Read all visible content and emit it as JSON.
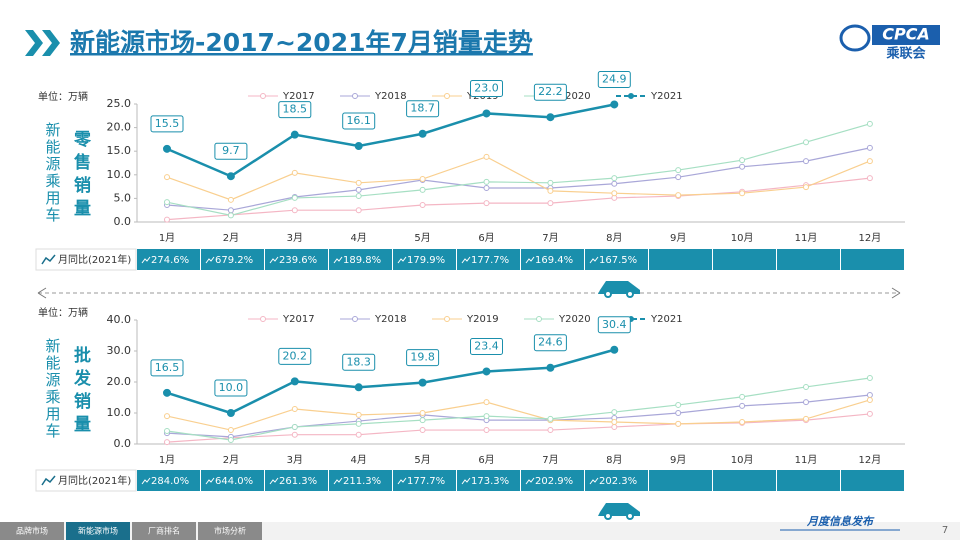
{
  "header": {
    "title": "新能源市场-2017~2021年7月销量走势",
    "logo": "CPCA",
    "logo_sub": "乘联会"
  },
  "chart_data": [
    {
      "type": "line",
      "title": "零售销量",
      "side_label": "新能源乘用车",
      "unit": "单位：万辆",
      "categories": [
        "1月",
        "2月",
        "3月",
        "4月",
        "5月",
        "6月",
        "7月",
        "8月",
        "9月",
        "10月",
        "11月",
        "12月"
      ],
      "ylim": [
        0,
        25
      ],
      "yticks": [
        {
          "value": 0,
          "label": "0.0"
        },
        {
          "value": 5,
          "label": "5.0"
        },
        {
          "value": 10,
          "label": "10.0"
        },
        {
          "value": 15,
          "label": "15.0"
        },
        {
          "value": 20,
          "label": "20.0"
        },
        {
          "value": 25,
          "label": "25.0"
        }
      ],
      "series": [
        {
          "name": "Y2017",
          "color": "#f4b6c4",
          "values": [
            0.5,
            1.5,
            2.5,
            2.5,
            3.6,
            4.0,
            4.0,
            5.1,
            5.5,
            6.4,
            7.8,
            9.3
          ]
        },
        {
          "name": "Y2018",
          "color": "#a9a7d8",
          "values": [
            3.6,
            2.5,
            5.3,
            6.8,
            8.9,
            7.2,
            7.2,
            8.1,
            9.5,
            11.7,
            12.9,
            15.7
          ]
        },
        {
          "name": "Y2019",
          "color": "#f9cf8f",
          "values": [
            9.5,
            4.7,
            10.4,
            8.3,
            9.1,
            13.8,
            6.6,
            6.1,
            5.7,
            6.1,
            7.4,
            12.9
          ]
        },
        {
          "name": "Y2020",
          "color": "#a6dfc3",
          "values": [
            4.2,
            1.4,
            5.1,
            5.5,
            6.8,
            8.5,
            8.3,
            9.3,
            11.0,
            13.1,
            16.9,
            20.8
          ]
        },
        {
          "name": "Y2021",
          "color": "#1a8fac",
          "values": [
            15.5,
            9.7,
            18.5,
            16.1,
            18.7,
            23,
            22.2,
            24.9,
            null,
            null,
            null,
            null
          ],
          "value_labels": [
            "15.5",
            "9.7",
            "18.5",
            "16.1",
            "18.7",
            "23.0",
            "22.2",
            "24.9",
            null,
            null,
            null,
            null
          ]
        }
      ],
      "yoy": {
        "label": "月同比(2021年)",
        "values": [
          274.6,
          679.2,
          239.6,
          189.8,
          179.9,
          177.7,
          169.4,
          167.5,
          null,
          null,
          null,
          null
        ],
        "value_labels": [
          "274.6%",
          "679.2%",
          "239.6%",
          "189.8%",
          "179.9%",
          "177.7%",
          "169.4%",
          "167.5%",
          null,
          null,
          null,
          null
        ]
      }
    },
    {
      "type": "line",
      "title": "批发销量",
      "side_label": "新能源乘用车",
      "unit": "单位：万辆",
      "categories": [
        "1月",
        "2月",
        "3月",
        "4月",
        "5月",
        "6月",
        "7月",
        "8月",
        "9月",
        "10月",
        "11月",
        "12月"
      ],
      "ylim": [
        0,
        40
      ],
      "yticks": [
        {
          "value": 0,
          "label": "0.0"
        },
        {
          "value": 10,
          "label": "10.0"
        },
        {
          "value": 20,
          "label": "20.0"
        },
        {
          "value": 30,
          "label": "30.0"
        },
        {
          "value": 40,
          "label": "40.0"
        }
      ],
      "series": [
        {
          "name": "Y2017",
          "color": "#f4b6c4",
          "values": [
            0.6,
            2.0,
            3.0,
            3.0,
            4.5,
            4.5,
            4.5,
            5.5,
            6.5,
            6.8,
            7.7,
            9.7
          ]
        },
        {
          "name": "Y2018",
          "color": "#a9a7d8",
          "values": [
            3.5,
            2.3,
            5.5,
            7.4,
            9.4,
            7.7,
            7.7,
            8.4,
            10.0,
            12.3,
            13.5,
            15.8
          ]
        },
        {
          "name": "Y2019",
          "color": "#f9cf8f",
          "values": [
            9.0,
            4.5,
            11.3,
            9.4,
            10.0,
            13.5,
            7.7,
            7.1,
            6.5,
            7.1,
            8.1,
            14.2
          ]
        },
        {
          "name": "Y2020",
          "color": "#a6dfc3",
          "values": [
            4.2,
            1.3,
            5.5,
            6.5,
            7.7,
            9.0,
            8.1,
            10.3,
            12.6,
            15.2,
            18.4,
            21.3
          ]
        },
        {
          "name": "Y2021",
          "color": "#1a8fac",
          "values": [
            16.5,
            10,
            20.2,
            18.3,
            19.8,
            23.4,
            24.6,
            30.4,
            null,
            null,
            null,
            null
          ],
          "value_labels": [
            "16.5",
            "10.0",
            "20.2",
            "18.3",
            "19.8",
            "23.4",
            "24.6",
            "30.4",
            null,
            null,
            null,
            null
          ]
        }
      ],
      "yoy": {
        "label": "月同比(2021年)",
        "values": [
          284.0,
          644.0,
          261.3,
          211.3,
          177.7,
          173.3,
          202.9,
          202.3,
          null,
          null,
          null,
          null
        ],
        "value_labels": [
          "284.0%",
          "644.0%",
          "261.3%",
          "211.3%",
          "177.7%",
          "173.3%",
          "202.9%",
          "202.3%",
          null,
          null,
          null,
          null
        ]
      }
    }
  ],
  "footer": {
    "tabs": [
      "品牌市场",
      "新能源市场",
      "厂商排名",
      "市场分析"
    ],
    "active_tab": 1,
    "publisher": "月度信息发布",
    "page": 7
  }
}
